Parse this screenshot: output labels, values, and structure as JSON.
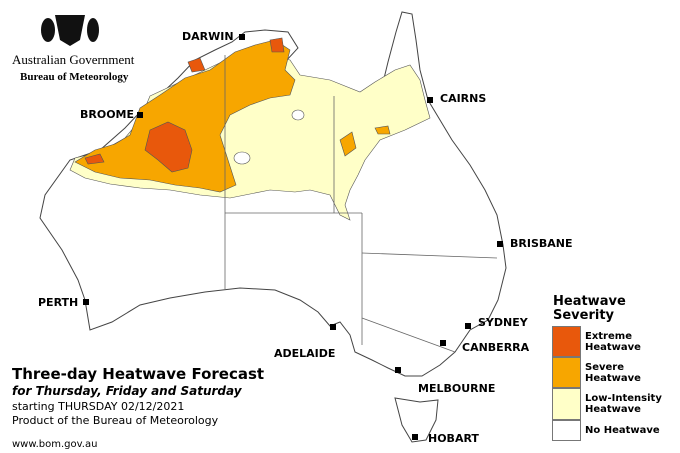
{
  "header": {
    "government": "Australian Government",
    "bureau": "Bureau of Meteorology"
  },
  "cities": [
    "DARWIN",
    "CAIRNS",
    "BROOME",
    "BRISBANE",
    "PERTH",
    "SYDNEY",
    "CANBERRA",
    "ADELAIDE",
    "MELBOURNE",
    "HOBART"
  ],
  "legend": {
    "title": "Heatwave Severity",
    "items": [
      {
        "label": "Extreme Heatwave",
        "color": "#e8580c"
      },
      {
        "label": "Severe Heatwave",
        "color": "#f7a600"
      },
      {
        "label": "Low-Intensity Heatwave",
        "color": "#ffffc8"
      },
      {
        "label": "No Heatwave",
        "color": "#ffffff"
      }
    ]
  },
  "caption": {
    "title": "Three-day Heatwave Forecast",
    "subtitle": "for Thursday, Friday and Saturday",
    "date": "starting THURSDAY 02/12/2021",
    "credit": "Product of the Bureau of Meteorology",
    "url": "www.bom.gov.au"
  }
}
